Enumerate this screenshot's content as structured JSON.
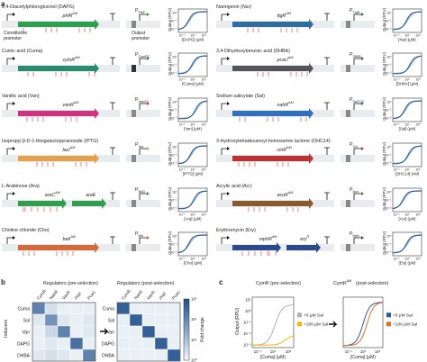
{
  "panel_a": {
    "label": "a",
    "constitutive_promoter_label": [
      "Constitutive",
      "promoter"
    ],
    "output_promoter_label": [
      "Output",
      "promoter"
    ],
    "y_axis_label": "Output (RPU)",
    "y_ticks": [
      "10⁰",
      "10⁻¹",
      "10⁻²"
    ],
    "x_ticks": [
      "10⁻¹",
      "10¹",
      "10³"
    ],
    "colors": {
      "DAPG": "#2e9e4f",
      "Cuma": "#2a8c6e",
      "Van": "#d62f7f",
      "IPTG": "#e8a048",
      "Ara": "#2ea04c",
      "Cho": "#d46a3a",
      "Nar": "#2e6e9e",
      "DHBA": "#555555",
      "Sal": "#3070c0",
      "OHC14": "#c03030",
      "Acr": "#8a5a2a",
      "Ery": "#2a4a8a"
    },
    "sensors": [
      {
        "key": "DAPG",
        "title": "2,4-Diacetylphloroglucinol (DAPG)",
        "gene": "phlR",
        "gene_sup": "AM",
        "promoter": "P",
        "promoter_sub": "PhlF",
        "xlabel": "[DAPG] (μM)"
      },
      {
        "key": "Cuma",
        "title": "Cumic acid (Cuma)",
        "gene": "cymR",
        "gene_sup": "AM",
        "promoter": "P",
        "promoter_sub": "CymRC",
        "xlabel": "[Cuma] (μM)"
      },
      {
        "key": "Van",
        "title": "Vanillic acid (Van)",
        "gene": "vanR",
        "gene_sup": "AM",
        "promoter": "P",
        "promoter_sub": "VanCC",
        "xlabel": "[Van] (μM)"
      },
      {
        "key": "IPTG",
        "title": "Isopropyl β-D-1-thiogalactopyranoside (IPTG)",
        "gene": "lacI",
        "gene_sup": "AM",
        "promoter": "P",
        "promoter_sub": "Tac",
        "xlabel": "[IPTG] (μM)"
      },
      {
        "key": "Ara",
        "title": "L-Arabinose (Ara)",
        "gene": "araC",
        "gene_sup": "AM",
        "gene2": "araE",
        "promoter": "P",
        "promoter_sub": "BAD",
        "xlabel": "[Ara] (μM)"
      },
      {
        "key": "Cho",
        "title": "Choline chloride (Cho)",
        "gene": "betI",
        "gene_sup": "AM",
        "promoter": "P",
        "promoter_sub": "Bet",
        "xlabel": "[Cho] (μM)"
      },
      {
        "key": "Nar",
        "title": "Naringenin (Nar)",
        "gene": "ttgR",
        "gene_sup": "AM",
        "promoter": "P",
        "promoter_sub": "TtgR",
        "xlabel": "[Nar] (μM)"
      },
      {
        "key": "DHBA",
        "title": "3,4-Dihydroxybenzoic acid (DHBA)",
        "gene": "pcaU",
        "gene_sup": "AM",
        "promoter": "P",
        "promoter_sub": "3B5B",
        "xlabel": "[DHBA] (μM)"
      },
      {
        "key": "Sal",
        "title": "Sodium salicylate (Sal)",
        "gene": "nahR",
        "gene_sup": "AM",
        "promoter": "P",
        "promoter_sub": "SalTCC",
        "xlabel": "[Sal] (μM)"
      },
      {
        "key": "OHC14",
        "title": "3-Hydroxytetradecanoyl-homoserine lactone (OHC14)",
        "gene": "cinR",
        "gene_sup": "AM",
        "promoter": "P",
        "promoter_sub": "Cin",
        "xlabel": "[OHC14] (nM)"
      },
      {
        "key": "Acr",
        "title": "Acrylic acid (Acr)",
        "gene": "acuR",
        "gene_sup": "AM",
        "promoter": "P",
        "promoter_sub": "Acu",
        "xlabel": "[Acr] (μM)"
      },
      {
        "key": "Ery",
        "title": "Erythromycin (Ery)",
        "gene": "mphR",
        "gene_sup": "AM",
        "gene2": "ery",
        "gene2_sup": "R",
        "promoter": "P",
        "promoter_sub": "Mph",
        "xlabel": "[Ery] (μM)"
      }
    ]
  },
  "panel_b": {
    "label": "b",
    "left_title": "Regulators (pre-selection)",
    "right_title": "Regulators (post-selection)",
    "inducers_label": "Inducers",
    "regulators": [
      "CymR",
      "NahR",
      "VanR",
      "PhlF",
      "PcaU"
    ],
    "inducers": [
      "Cuma",
      "Sal",
      "Van",
      "DAPG",
      "DHBA"
    ],
    "colorbar_label": "Fold change",
    "colorbar_ticks": [
      "10⁰",
      "10¹",
      "10²",
      "10³"
    ],
    "pre_matrix": [
      [
        0.7,
        0.15,
        0.05,
        0.05,
        0.05
      ],
      [
        0.1,
        0.6,
        0.1,
        0.05,
        0.1
      ],
      [
        0.05,
        0.2,
        0.7,
        0.05,
        0.1
      ],
      [
        0.05,
        0.1,
        0.05,
        0.8,
        0.05
      ],
      [
        0.1,
        0.15,
        0.1,
        0.05,
        0.7
      ]
    ],
    "post_matrix": [
      [
        0.9,
        0.05,
        0.05,
        0.05,
        0.05
      ],
      [
        0.05,
        0.9,
        0.05,
        0.05,
        0.05
      ],
      [
        0.05,
        0.05,
        0.9,
        0.05,
        0.05
      ],
      [
        0.05,
        0.05,
        0.05,
        0.9,
        0.05
      ],
      [
        0.05,
        0.05,
        0.05,
        0.05,
        0.9
      ]
    ],
    "color_low": "#f4f8fb",
    "color_high": "#1f4e8c"
  },
  "panel_c": {
    "label": "c",
    "left_title": "CymR (pre-selection)",
    "right_title": "CymR",
    "right_title_sup": "AM",
    "right_title_suffix": " (post-selection)",
    "y_label": "Output (RPU)",
    "x_label": "[Cuma] (μM)",
    "y_ticks": [
      "10¹",
      "10⁰",
      "10⁻¹",
      "10⁻²",
      "10⁻³"
    ],
    "x_ticks": [
      "10⁻¹",
      "10¹",
      "10³"
    ],
    "left_legend": [
      {
        "label": "+0 μM Sal",
        "color": "#b0b0b0"
      },
      {
        "label": "+100 μM Sal",
        "color": "#f5b400"
      }
    ],
    "right_legend": [
      {
        "label": "+0 μM Sal",
        "color": "#2a5aa8"
      },
      {
        "label": "+100 μM Sal",
        "color": "#e07020"
      }
    ]
  }
}
